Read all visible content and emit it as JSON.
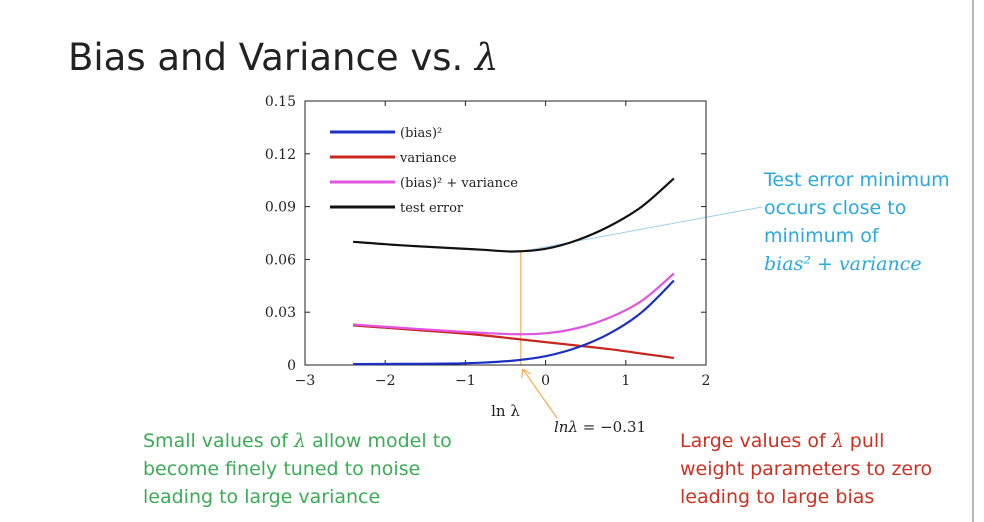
{
  "slide": {
    "title_prefix": "Bias and Variance vs. ",
    "title_symbol": "λ"
  },
  "notes": {
    "right": {
      "line1": "Test error minimum",
      "line2": "occurs close to",
      "line3": "minimum of",
      "line4": "bias² + variance"
    },
    "left": {
      "line1_pre": "Small values of ",
      "symbol": "λ",
      "line1_post": " allow model to",
      "line2": "become finely tuned to noise",
      "line3": "leading to large variance"
    },
    "bottom_right": {
      "line1_pre": "Large values of ",
      "symbol": "λ",
      "line1_post": " pull",
      "line2": "weight parameters to zero",
      "line3": "leading to large bias"
    },
    "minimum_label": {
      "lhs": "lnλ",
      "rhs": " = −0.31"
    }
  },
  "colors": {
    "bias": "#1c2fc4",
    "variance": "#c8261e",
    "sum": "#e055e0",
    "test": "#111111",
    "pointer_line": "#9fd0ec",
    "arrow": "#f0b060",
    "right_note": "#2aa9de",
    "left_note": "#3cac56",
    "bottom_note": "#cc3222"
  },
  "chart_data": {
    "type": "line",
    "xlabel": "ln λ",
    "ylabel": "",
    "xlim": [
      -3,
      2
    ],
    "ylim": [
      0,
      0.15
    ],
    "x_ticks": [
      "−3",
      "−2",
      "−1",
      "0",
      "1",
      "2"
    ],
    "y_ticks": [
      "0",
      "0.03",
      "0.06",
      "0.09",
      "0.12",
      "0.15"
    ],
    "grid": false,
    "legend_position": "top-left",
    "minimum_marker_x": -0.31,
    "series": [
      {
        "key": "bias",
        "name": "(bias)²",
        "x": [
          -2.4,
          -1.8,
          -1.2,
          -0.8,
          -0.4,
          0.0,
          0.4,
          0.8,
          1.2,
          1.6
        ],
        "y": [
          0.0005,
          0.0006,
          0.0008,
          0.0013,
          0.0025,
          0.005,
          0.01,
          0.018,
          0.03,
          0.048
        ]
      },
      {
        "key": "variance",
        "name": "variance",
        "x": [
          -2.4,
          -1.8,
          -1.2,
          -0.8,
          -0.4,
          0.0,
          0.4,
          0.8,
          1.2,
          1.6
        ],
        "y": [
          0.0225,
          0.0205,
          0.0185,
          0.017,
          0.015,
          0.013,
          0.011,
          0.009,
          0.0065,
          0.004
        ]
      },
      {
        "key": "sum",
        "name": "(bias)² + variance",
        "x": [
          -2.4,
          -1.8,
          -1.2,
          -0.8,
          -0.4,
          0.0,
          0.4,
          0.8,
          1.2,
          1.6
        ],
        "y": [
          0.023,
          0.0211,
          0.0193,
          0.0183,
          0.0175,
          0.018,
          0.021,
          0.027,
          0.0365,
          0.052
        ]
      },
      {
        "key": "test",
        "name": "test error",
        "x": [
          -2.4,
          -1.8,
          -1.2,
          -0.8,
          -0.4,
          0.0,
          0.4,
          0.8,
          1.2,
          1.6
        ],
        "y": [
          0.07,
          0.068,
          0.0665,
          0.0655,
          0.0645,
          0.066,
          0.071,
          0.079,
          0.09,
          0.106
        ]
      }
    ]
  }
}
